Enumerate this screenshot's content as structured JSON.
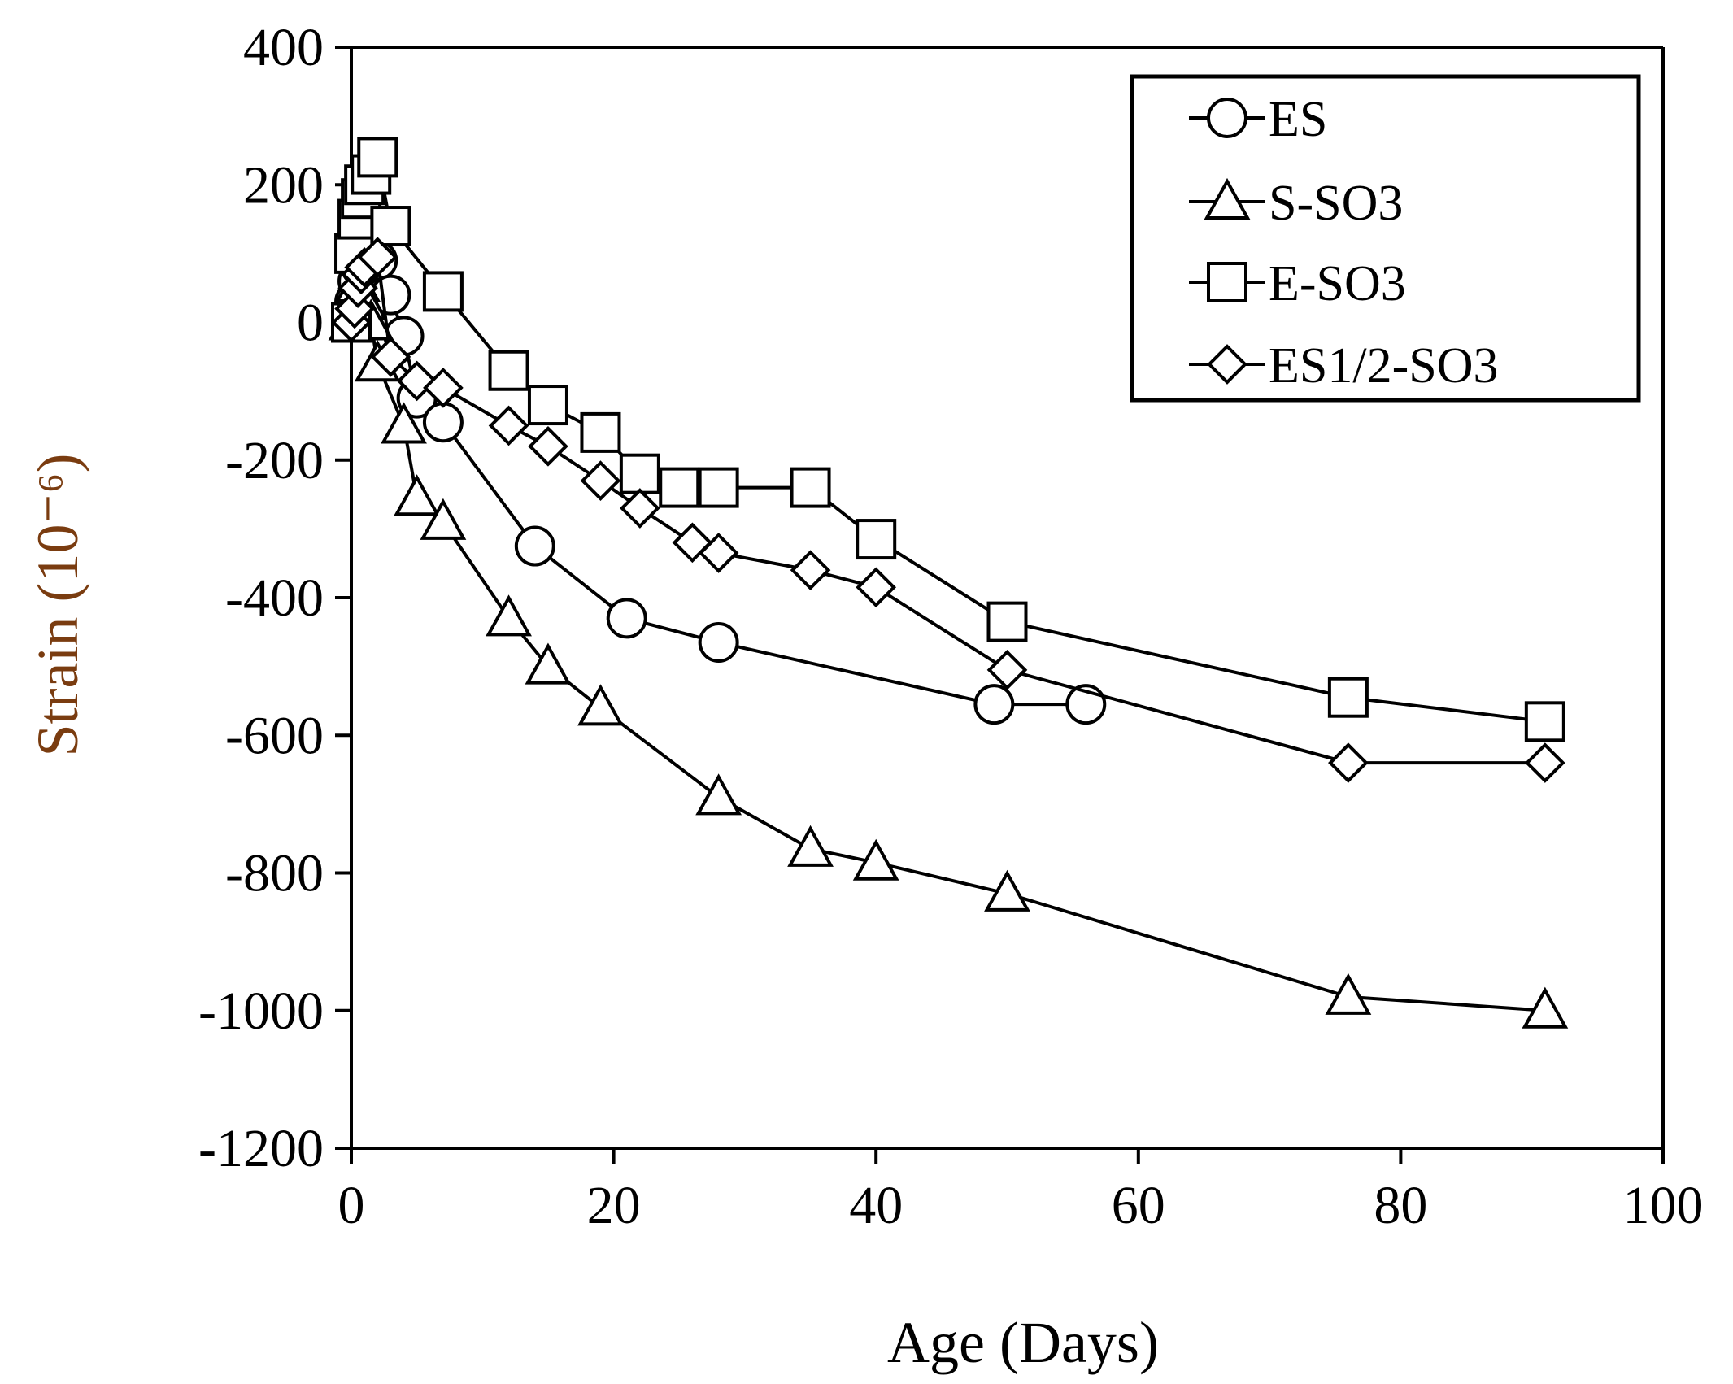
{
  "chart_data": {
    "type": "line",
    "title": "",
    "xlabel": "Age (Days)",
    "ylabel": "Strain (10⁻⁶)",
    "xlim": [
      0,
      100
    ],
    "ylim": [
      -1200,
      400
    ],
    "xticks": [
      "0",
      "20",
      "40",
      "60",
      "80",
      "100"
    ],
    "yticks": [
      "400",
      "200",
      "0",
      "-200",
      "-400",
      "-600",
      "-800",
      "-1000",
      "-1200"
    ],
    "xtick_values": [
      0,
      20,
      40,
      60,
      80,
      100
    ],
    "ytick_values": [
      400,
      200,
      0,
      -200,
      -400,
      -600,
      -800,
      -1000,
      -1200
    ],
    "grid": false,
    "legend_position": "top-right",
    "colors": {
      "line": "#000000",
      "marker_fill": "#ffffff",
      "ylabel": "#7a3c10"
    },
    "series": [
      {
        "name": "ES",
        "marker": "circle",
        "x": [
          0,
          0.25,
          0.5,
          0.75,
          1,
          1.5,
          2,
          3,
          4,
          5,
          7,
          14,
          21,
          28,
          49,
          56
        ],
        "y": [
          0,
          30,
          60,
          80,
          90,
          95,
          90,
          40,
          -20,
          -110,
          -145,
          -325,
          -430,
          -465,
          -555,
          -555
        ]
      },
      {
        "name": "S-SO3",
        "marker": "triangle",
        "x": [
          0,
          0.25,
          0.5,
          1,
          1.5,
          2,
          4,
          5,
          7,
          12,
          15,
          19,
          28,
          35,
          40,
          50,
          76,
          91
        ],
        "y": [
          0,
          30,
          55,
          30,
          0,
          -60,
          -150,
          -255,
          -290,
          -430,
          -500,
          -560,
          -690,
          -765,
          -785,
          -830,
          -980,
          -1000
        ]
      },
      {
        "name": "E-SO3",
        "marker": "square",
        "x": [
          0,
          0.25,
          0.5,
          0.75,
          1,
          1.5,
          2,
          3,
          7,
          12,
          15,
          19,
          22,
          25,
          28,
          35,
          40,
          50,
          76,
          91
        ],
        "y": [
          0,
          100,
          150,
          180,
          200,
          215,
          240,
          140,
          45,
          -70,
          -120,
          -160,
          -220,
          -240,
          -240,
          -240,
          -315,
          -435,
          -545,
          -580
        ]
      },
      {
        "name": "ES1/2-SO3",
        "marker": "diamond",
        "x": [
          0,
          0.25,
          0.5,
          0.75,
          1,
          2,
          3,
          5,
          7,
          12,
          15,
          19,
          22,
          26,
          28,
          35,
          40,
          50,
          76,
          91
        ],
        "y": [
          0,
          20,
          50,
          70,
          80,
          95,
          -50,
          -85,
          -95,
          -150,
          -180,
          -230,
          -270,
          -320,
          -335,
          -360,
          -385,
          -505,
          -640,
          -640
        ]
      }
    ]
  }
}
